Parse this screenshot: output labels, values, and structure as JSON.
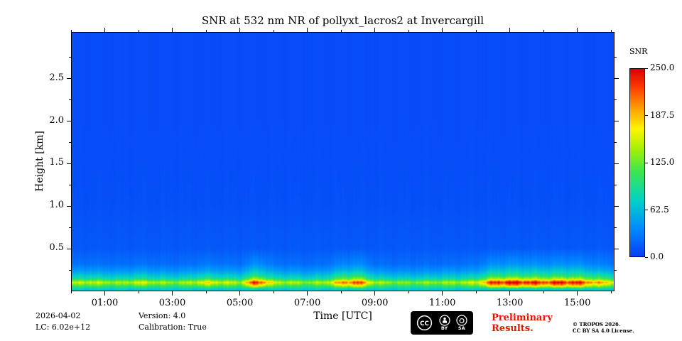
{
  "meta": {
    "date": "2026-04-02",
    "lc_label": "LC: 6.02e+12",
    "version_label": "Version: 4.0",
    "calibration_label": "Calibration: True"
  },
  "footer": {
    "preliminary_lines": [
      "Preliminary",
      "Results."
    ],
    "copyright_lines": [
      "© TROPOS 2026.",
      "CC BY SA 4.0 License."
    ],
    "cc_badge": {
      "cc": "CC",
      "by": "BY",
      "sa": "SA"
    }
  },
  "colors": {
    "preliminary_red": "#ee1100",
    "axis": "#000000",
    "background": "#ffffff"
  },
  "chart_data": {
    "type": "heatmap",
    "title": "SNR at 532 nm NR of pollyxt_lacros2 at Invercargill",
    "xlabel": "Time [UTC]",
    "ylabel": "Height [km]",
    "x_range_hours": [
      0,
      16.1
    ],
    "x_tick_hours": [
      1,
      3,
      5,
      7,
      9,
      11,
      13,
      15
    ],
    "x_tick_labels": [
      "01:00",
      "03:00",
      "05:00",
      "07:00",
      "09:00",
      "11:00",
      "13:00",
      "15:00"
    ],
    "x_minor_tick_hours": [
      0,
      2,
      4,
      6,
      8,
      10,
      12,
      14,
      16
    ],
    "y_range_km": [
      0,
      3.05
    ],
    "y_tick_km": [
      0.5,
      1.0,
      1.5,
      2.0,
      2.5
    ],
    "y_tick_labels": [
      "0.5",
      "1.0",
      "1.5",
      "2.0",
      "2.5"
    ],
    "y_minor_tick_km": [
      0.25,
      0.75,
      1.25,
      1.75,
      2.25,
      2.75
    ],
    "colorbar": {
      "label": "SNR",
      "min": 0,
      "max": 250,
      "tick_values": [
        250.0,
        187.5,
        125.0,
        62.5,
        0.0
      ],
      "tick_labels": [
        "250.0",
        "187.5",
        "125.0",
        "62.5",
        "0.0"
      ]
    },
    "colormap_stops": [
      [
        0.0,
        8,
        60,
        245
      ],
      [
        0.15,
        0,
        140,
        255
      ],
      [
        0.3,
        0,
        210,
        200
      ],
      [
        0.45,
        60,
        230,
        80
      ],
      [
        0.58,
        170,
        240,
        0
      ],
      [
        0.68,
        255,
        245,
        0
      ],
      [
        0.8,
        255,
        150,
        0
      ],
      [
        0.9,
        255,
        60,
        0
      ],
      [
        1.0,
        215,
        0,
        0
      ]
    ],
    "grid": {
      "time_hours_start": 0,
      "time_hours_step": 0.5,
      "heights_km": [
        0.02,
        0.06,
        0.1,
        0.14,
        0.18,
        0.24,
        0.32,
        0.5,
        1.0,
        2.0,
        3.05
      ],
      "rows": [
        72,
        [
          108,
          115,
          108,
          104,
          119,
          108,
          101,
          108,
          126,
          115,
          108,
          180,
          115,
          108,
          101,
          108,
          148,
          169,
          108,
          101,
          97,
          101,
          104,
          108,
          115,
          173,
          184,
          180,
          169,
          180,
          176,
          148,
          130
        ],
        [
          150,
          160,
          150,
          145,
          165,
          150,
          140,
          150,
          175,
          160,
          150,
          250,
          160,
          150,
          140,
          150,
          205,
          235,
          150,
          140,
          135,
          140,
          145,
          150,
          160,
          240,
          255,
          250,
          235,
          250,
          245,
          205,
          180
        ],
        [
          90,
          96,
          90,
          87,
          99,
          90,
          84,
          90,
          105,
          96,
          90,
          150,
          96,
          90,
          84,
          90,
          123,
          141,
          90,
          84,
          81,
          84,
          87,
          90,
          96,
          144,
          153,
          150,
          141,
          150,
          147,
          123,
          108
        ],
        [
          68,
          72,
          68,
          65,
          74,
          68,
          63,
          68,
          79,
          72,
          68,
          100,
          72,
          68,
          63,
          68,
          92,
          100,
          68,
          63,
          61,
          63,
          65,
          68,
          72,
          100,
          102,
          100,
          100,
          100,
          100,
          92,
          81
        ],
        [
          42,
          45,
          42,
          41,
          46,
          42,
          39,
          42,
          49,
          45,
          42,
          70,
          45,
          42,
          39,
          42,
          57,
          66,
          42,
          39,
          38,
          39,
          41,
          42,
          45,
          67,
          71,
          70,
          66,
          70,
          69,
          57,
          50
        ],
        [
          24,
          26,
          24,
          23,
          26,
          24,
          22,
          24,
          28,
          26,
          24,
          40,
          26,
          24,
          22,
          24,
          33,
          38,
          24,
          22,
          22,
          22,
          23,
          24,
          26,
          38,
          41,
          40,
          38,
          40,
          39,
          33,
          29
        ],
        14,
        10,
        8,
        8
      ]
    }
  }
}
